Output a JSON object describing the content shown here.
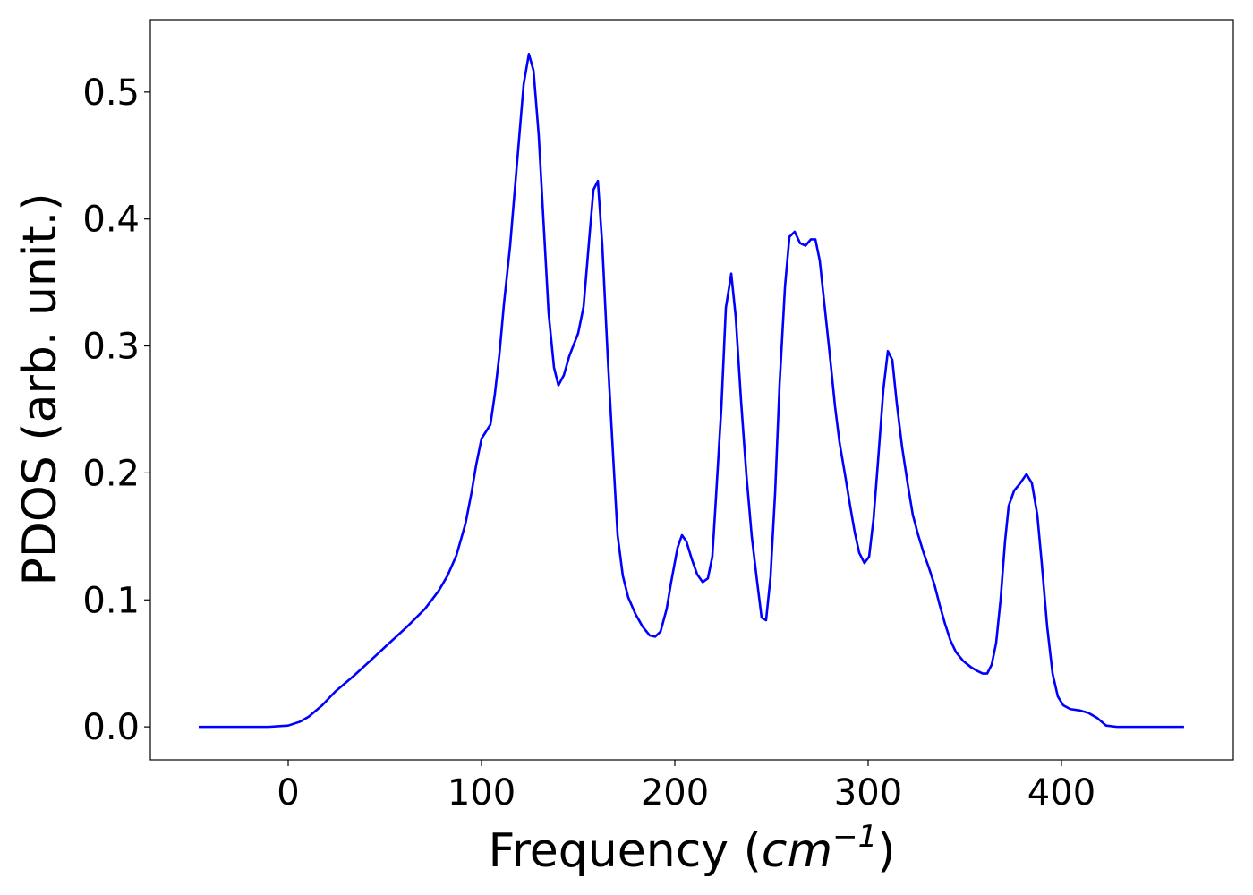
{
  "chart_data": {
    "type": "line",
    "xlabel": {
      "text": "Frequency (",
      "math": "cm",
      "superscript": "−1",
      "close": ")"
    },
    "ylabel": "PDOS (arb. unit.)",
    "xlim": [
      -71.3,
      488.9
    ],
    "ylim": [
      -0.026,
      0.557
    ],
    "xticks": [
      0,
      100,
      200,
      300,
      400
    ],
    "yticks": [
      {
        "value": 0,
        "label": "0.0"
      },
      0.1,
      0.2,
      0.3,
      0.4,
      0.5
    ],
    "color": "#0000ff",
    "x": [
      -46.3,
      -10.2,
      0,
      6.0,
      10.6,
      17.6,
      24.5,
      33.8,
      43.1,
      52.3,
      61.6,
      70.8,
      77.8,
      82.4,
      87.0,
      91.7,
      94.9,
      97.2,
      100.0,
      104.6,
      106.9,
      109.3,
      111.6,
      114.8,
      118.1,
      121.8,
      124.5,
      126.9,
      129.6,
      132.4,
      134.7,
      137.5,
      139.8,
      142.6,
      145.4,
      150.0,
      152.8,
      155.6,
      157.9,
      160.2,
      162.5,
      165.3,
      168.1,
      170.4,
      173.1,
      175.9,
      179.6,
      183.3,
      187.0,
      189.8,
      192.6,
      195.8,
      198.1,
      201.4,
      203.7,
      206.0,
      208.8,
      211.6,
      214.4,
      217.1,
      219.4,
      221.3,
      224.1,
      226.4,
      229.2,
      231.5,
      234.3,
      237.0,
      239.8,
      242.6,
      244.9,
      247.2,
      249.5,
      251.9,
      254.2,
      257.0,
      259.3,
      262.0,
      264.8,
      267.6,
      270.4,
      272.7,
      275.0,
      277.3,
      280.1,
      282.9,
      285.2,
      288.0,
      290.7,
      293.1,
      295.4,
      298.1,
      300.5,
      302.8,
      305.1,
      307.9,
      310.2,
      312.5,
      314.8,
      317.6,
      320.4,
      323.1,
      325.9,
      328.7,
      331.5,
      334.3,
      337.0,
      339.8,
      342.6,
      345.4,
      349.1,
      353.2,
      356.5,
      359.3,
      361.6,
      363.9,
      366.2,
      368.5,
      370.8,
      372.7,
      375.5,
      378.7,
      381.9,
      384.7,
      387.5,
      389.8,
      392.6,
      395.4,
      398.1,
      400.9,
      404.6,
      409.3,
      413.9,
      418.5,
      423.1,
      428.7,
      463.4
    ],
    "values": [
      0,
      0,
      0.001,
      0.004,
      0.008,
      0.017,
      0.028,
      0.04,
      0.053,
      0.066,
      0.079,
      0.093,
      0.107,
      0.119,
      0.135,
      0.16,
      0.185,
      0.206,
      0.227,
      0.238,
      0.262,
      0.294,
      0.333,
      0.379,
      0.439,
      0.506,
      0.53,
      0.517,
      0.466,
      0.389,
      0.326,
      0.283,
      0.269,
      0.277,
      0.292,
      0.31,
      0.331,
      0.382,
      0.423,
      0.43,
      0.379,
      0.291,
      0.213,
      0.151,
      0.119,
      0.102,
      0.089,
      0.079,
      0.072,
      0.071,
      0.075,
      0.093,
      0.114,
      0.141,
      0.151,
      0.146,
      0.132,
      0.12,
      0.114,
      0.117,
      0.134,
      0.181,
      0.252,
      0.33,
      0.357,
      0.323,
      0.256,
      0.199,
      0.15,
      0.114,
      0.086,
      0.084,
      0.118,
      0.185,
      0.27,
      0.347,
      0.386,
      0.39,
      0.381,
      0.379,
      0.384,
      0.384,
      0.367,
      0.334,
      0.294,
      0.252,
      0.224,
      0.199,
      0.174,
      0.153,
      0.137,
      0.129,
      0.134,
      0.164,
      0.209,
      0.266,
      0.296,
      0.289,
      0.255,
      0.22,
      0.192,
      0.167,
      0.151,
      0.137,
      0.125,
      0.112,
      0.096,
      0.081,
      0.068,
      0.059,
      0.052,
      0.047,
      0.044,
      0.042,
      0.042,
      0.049,
      0.066,
      0.1,
      0.146,
      0.174,
      0.186,
      0.192,
      0.199,
      0.192,
      0.167,
      0.129,
      0.079,
      0.042,
      0.024,
      0.017,
      0.014,
      0.013,
      0.011,
      0.007,
      0.001,
      0,
      0
    ]
  }
}
